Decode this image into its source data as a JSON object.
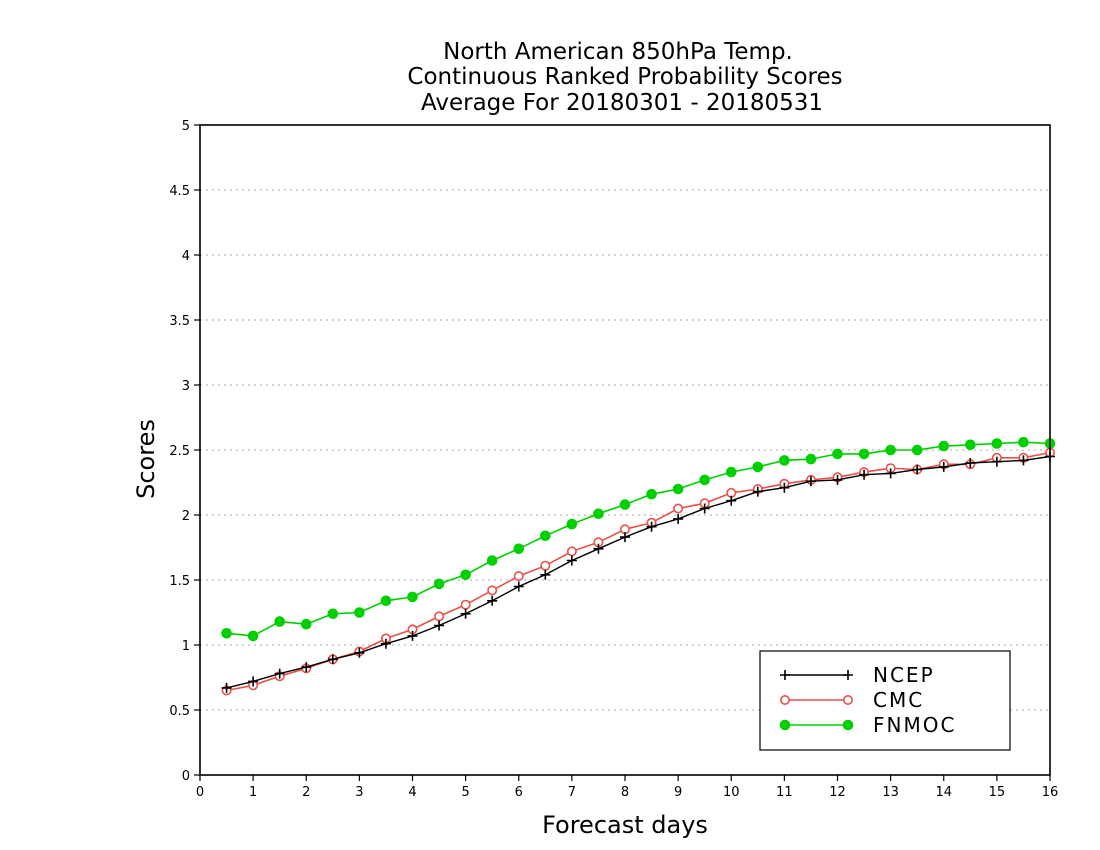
{
  "chart_data": {
    "type": "line",
    "title_lines": [
      "North American 850hPa Temp.",
      "Continuous Ranked Probability Scores",
      "Average For 20180301 - 20180531"
    ],
    "xlabel": "Forecast days",
    "ylabel": "Scores",
    "xlim": [
      0,
      16
    ],
    "ylim": [
      0,
      5
    ],
    "x_ticks": [
      "0",
      "1",
      "2",
      "3",
      "4",
      "5",
      "6",
      "7",
      "8",
      "9",
      "10",
      "11",
      "12",
      "13",
      "14",
      "15",
      "16"
    ],
    "y_ticks": [
      "0",
      "0.5",
      "1",
      "1.5",
      "2",
      "2.5",
      "3",
      "3.5",
      "4",
      "4.5",
      "5"
    ],
    "grid": true,
    "legend_position": "bottom-right",
    "x": [
      0.5,
      1,
      1.5,
      2,
      2.5,
      3,
      3.5,
      4,
      4.5,
      5,
      5.5,
      6,
      6.5,
      7,
      7.5,
      8,
      8.5,
      9,
      9.5,
      10,
      10.5,
      11,
      11.5,
      12,
      12.5,
      13,
      13.5,
      14,
      14.5,
      15,
      15.5,
      16
    ],
    "series": [
      {
        "name": "NCEP",
        "color": "#000000",
        "marker": "plus",
        "values": [
          0.67,
          0.72,
          0.78,
          0.83,
          0.89,
          0.94,
          1.01,
          1.07,
          1.15,
          1.24,
          1.34,
          1.45,
          1.54,
          1.65,
          1.74,
          1.83,
          1.91,
          1.97,
          2.05,
          2.11,
          2.18,
          2.21,
          2.26,
          2.27,
          2.31,
          2.32,
          2.35,
          2.37,
          2.4,
          2.41,
          2.42,
          2.45
        ]
      },
      {
        "name": "CMC",
        "color": "#e8514a",
        "marker": "open-circle",
        "values": [
          0.65,
          0.69,
          0.76,
          0.82,
          0.89,
          0.95,
          1.05,
          1.12,
          1.22,
          1.31,
          1.42,
          1.53,
          1.61,
          1.72,
          1.79,
          1.89,
          1.94,
          2.05,
          2.09,
          2.17,
          2.2,
          2.24,
          2.27,
          2.29,
          2.33,
          2.36,
          2.35,
          2.39,
          2.39,
          2.44,
          2.44,
          2.48
        ]
      },
      {
        "name": "FNMOC",
        "color": "#00d000",
        "marker": "filled-circle",
        "values": [
          1.09,
          1.07,
          1.18,
          1.16,
          1.24,
          1.25,
          1.34,
          1.37,
          1.47,
          1.54,
          1.65,
          1.74,
          1.84,
          1.93,
          2.01,
          2.08,
          2.16,
          2.2,
          2.27,
          2.33,
          2.37,
          2.42,
          2.43,
          2.47,
          2.47,
          2.5,
          2.5,
          2.53,
          2.54,
          2.55,
          2.56,
          2.55
        ]
      }
    ]
  }
}
